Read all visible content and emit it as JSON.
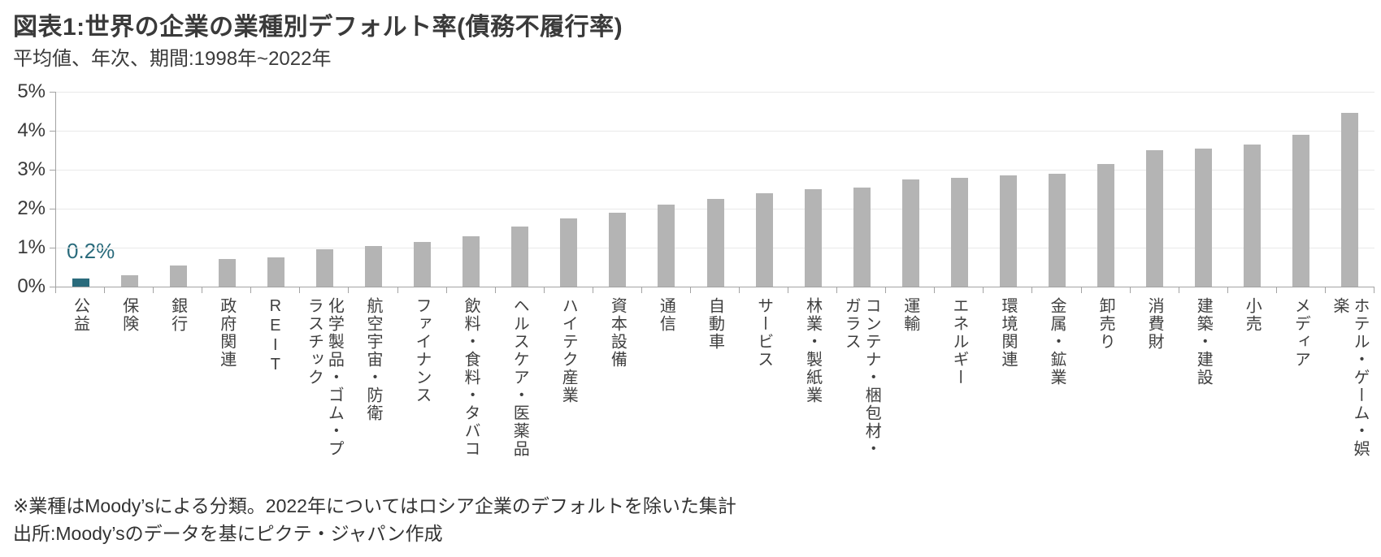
{
  "header": {
    "title": "図表1:世界の企業の業種別デフォルト率(債務不履行率)",
    "subtitle": "平均値、年次、期間:1998年~2022年"
  },
  "chart_data": {
    "type": "bar",
    "title": "図表1:世界の企業の業種別デフォルト率(債務不履行率)",
    "subtitle": "平均値、年次、期間:1998年~2022年",
    "categories": [
      "公益",
      "保険",
      "銀行",
      "政府関連",
      "REIT",
      "化学製品・ゴム・プラスチック",
      "航空宇宙・防衛",
      "ファイナンス",
      "飲料・食料・タバコ",
      "ヘルスケア・医薬品",
      "ハイテク産業",
      "資本設備",
      "通信",
      "自動車",
      "サービス",
      "林業・製紙業",
      "コンテナ・梱包材・ガラス",
      "運輸",
      "エネルギー",
      "環境関連",
      "金属・鉱業",
      "卸売り",
      "消費財",
      "建築・建設",
      "小売",
      "メディア",
      "ホテル・ゲーム・娯楽"
    ],
    "values": [
      0.2,
      0.3,
      0.55,
      0.7,
      0.75,
      0.95,
      1.05,
      1.15,
      1.3,
      1.55,
      1.75,
      1.9,
      2.1,
      2.25,
      2.4,
      2.5,
      2.55,
      2.75,
      2.8,
      2.85,
      2.9,
      3.15,
      3.5,
      3.55,
      3.65,
      3.9,
      4.45
    ],
    "xlabel": "",
    "ylabel": "",
    "ylim": [
      0,
      5
    ],
    "y_tick_labels": [
      "5%",
      "4%",
      "3%",
      "2%",
      "1%",
      "0%"
    ],
    "grid": true,
    "legend": "none",
    "highlight_index": 0,
    "annotation": {
      "text": "0.2%",
      "category": "公益"
    },
    "colors": {
      "bar": "#b4b4b4",
      "highlight": "#2A6B7C",
      "gridline": "#e9e9e9",
      "axis": "#a3a3a3"
    }
  },
  "footer": {
    "note": "※業種はMoody’sによる分類。2022年についてはロシア企業のデフォルトを除いた集計",
    "source": "出所:Moody’sのデータを基にピクテ・ジャパン作成"
  }
}
